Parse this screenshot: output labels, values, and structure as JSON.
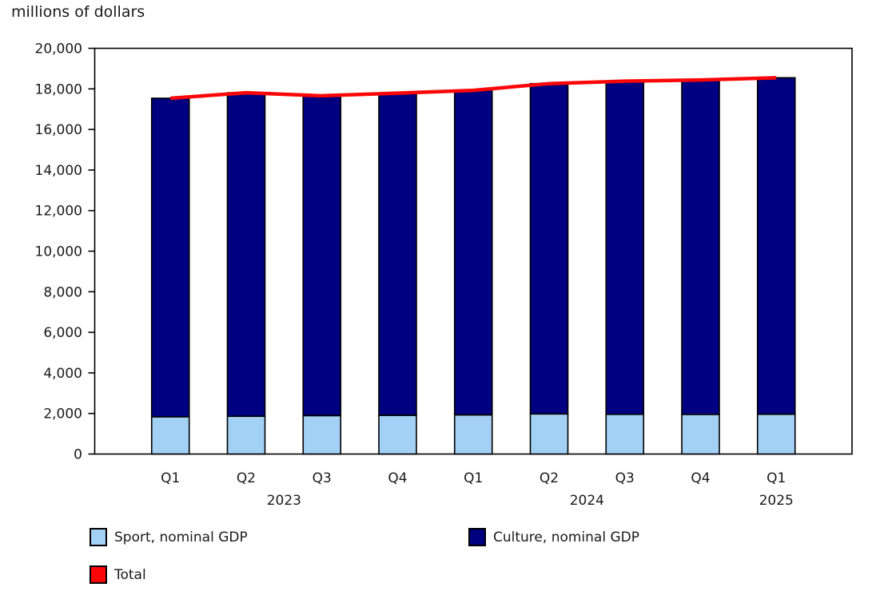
{
  "chart_data": {
    "type": "bar",
    "subtype": "stacked-bars-with-total-line",
    "title": "millions of dollars",
    "categories": [
      "Q1",
      "Q2",
      "Q3",
      "Q4",
      "Q1",
      "Q2",
      "Q3",
      "Q4",
      "Q1"
    ],
    "year_groups": [
      {
        "label": "2023",
        "span": [
          0,
          3
        ]
      },
      {
        "label": "2024",
        "span": [
          4,
          7
        ]
      },
      {
        "label": "2025",
        "span": [
          8,
          8
        ]
      }
    ],
    "series": [
      {
        "name": "Sport, nominal GDP",
        "render": "bar",
        "color": "#a3d0f5",
        "values": [
          1830,
          1860,
          1890,
          1905,
          1925,
          1975,
          1955,
          1950,
          1960
        ]
      },
      {
        "name": "Culture, nominal GDP",
        "render": "bar",
        "color": "#000080",
        "values": [
          15710,
          15950,
          15770,
          15885,
          16005,
          16285,
          16425,
          16490,
          16590
        ]
      },
      {
        "name": "Total",
        "render": "line",
        "color": "#fb0607",
        "values": [
          17540,
          17810,
          17660,
          17790,
          17930,
          18260,
          18380,
          18440,
          18550
        ]
      }
    ],
    "ylim": [
      0,
      20000
    ],
    "ytick_step": 2000,
    "grid": false,
    "legend_position": "bottom-left",
    "axis_color": "#000000",
    "text_color": "#1a1a1a"
  }
}
